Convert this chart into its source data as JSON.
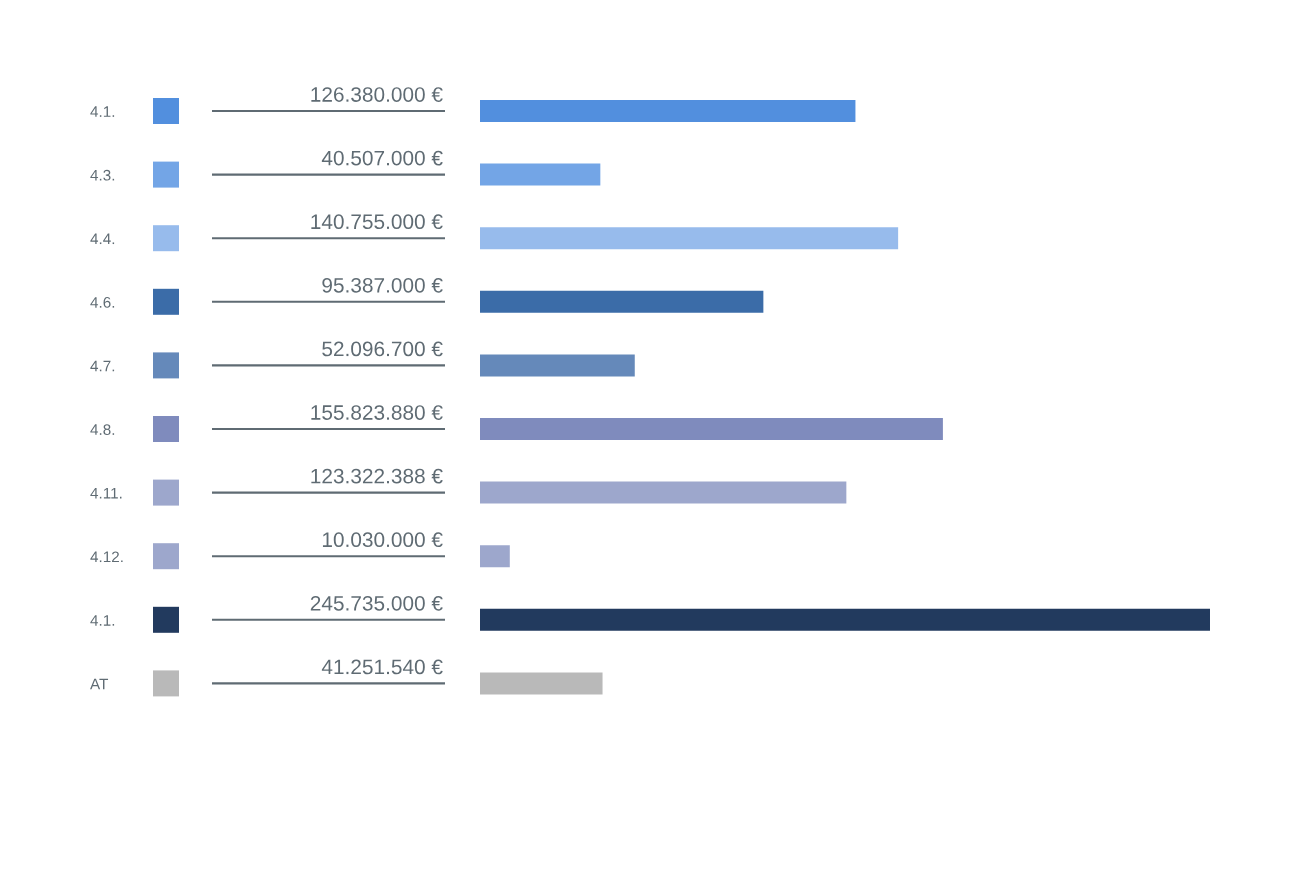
{
  "chart_data": {
    "type": "bar",
    "orientation": "horizontal",
    "categories": [
      "4.1.",
      "4.3.",
      "4.4.",
      "4.6.",
      "4.7.",
      "4.8.",
      "4.11.",
      "4.12.",
      "4.1.",
      "AT"
    ],
    "values": [
      126380000,
      40507000,
      140755000,
      95387000,
      52096700,
      155823880,
      123322388,
      10030000,
      245735000,
      41251540
    ],
    "colors": [
      "#528fde",
      "#73a5e6",
      "#97bbec",
      "#3b6ca8",
      "#6589ba",
      "#7f8bbd",
      "#9da7cc",
      "#9da7cc",
      "#223a5e",
      "#b9b9b9"
    ],
    "value_labels": [
      "126.380.000 €",
      "40.507.000 €",
      "140.755.000 €",
      "95.387.000 €",
      "52.096.700 €",
      "155.823.880 €",
      "123.322.388 €",
      "10.030.000 €",
      "245.735.000 €",
      "41.251.540 €"
    ]
  }
}
